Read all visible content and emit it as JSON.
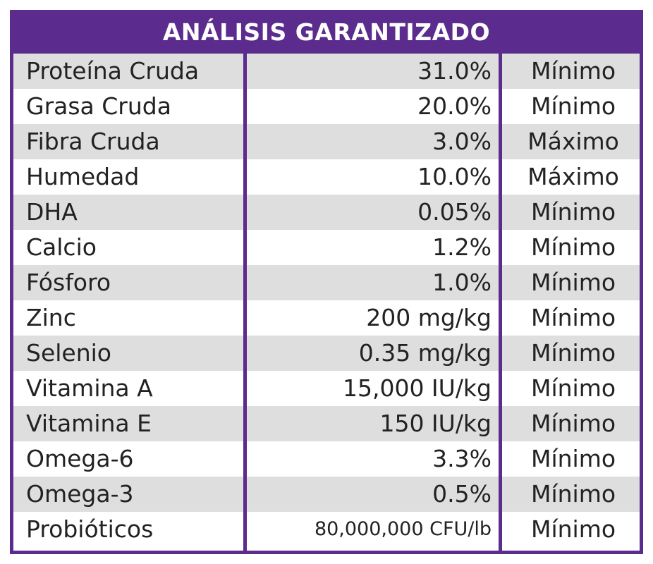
{
  "title": "ANÁLISIS GARANTIZADO",
  "colors": {
    "frame": "#5b2c8e",
    "shaded_row": "#dedede",
    "text": "#222222"
  },
  "rows": [
    {
      "nutrient": "Proteína Cruda",
      "value": "31.0%",
      "type": "Mínimo"
    },
    {
      "nutrient": "Grasa Cruda",
      "value": "20.0%",
      "type": "Mínimo"
    },
    {
      "nutrient": "Fibra Cruda",
      "value": "3.0%",
      "type": "Máximo"
    },
    {
      "nutrient": "Humedad",
      "value": "10.0%",
      "type": "Máximo"
    },
    {
      "nutrient": "DHA",
      "value": "0.05%",
      "type": "Mínimo"
    },
    {
      "nutrient": "Calcio",
      "value": "1.2%",
      "type": "Mínimo"
    },
    {
      "nutrient": "Fósforo",
      "value": "1.0%",
      "type": "Mínimo"
    },
    {
      "nutrient": "Zinc",
      "value": "200 mg/kg",
      "type": "Mínimo"
    },
    {
      "nutrient": "Selenio",
      "value": "0.35 mg/kg",
      "type": "Mínimo"
    },
    {
      "nutrient": "Vitamina A",
      "value": "15,000 IU/kg",
      "type": "Mínimo"
    },
    {
      "nutrient": "Vitamina E",
      "value": "150 IU/kg",
      "type": "Mínimo"
    },
    {
      "nutrient": "Omega-6",
      "value": "3.3%",
      "type": "Mínimo"
    },
    {
      "nutrient": "Omega-3",
      "value": "0.5%",
      "type": "Mínimo"
    },
    {
      "nutrient": "Probióticos",
      "value": "80,000,000 CFU/lb",
      "type": "Mínimo"
    }
  ]
}
